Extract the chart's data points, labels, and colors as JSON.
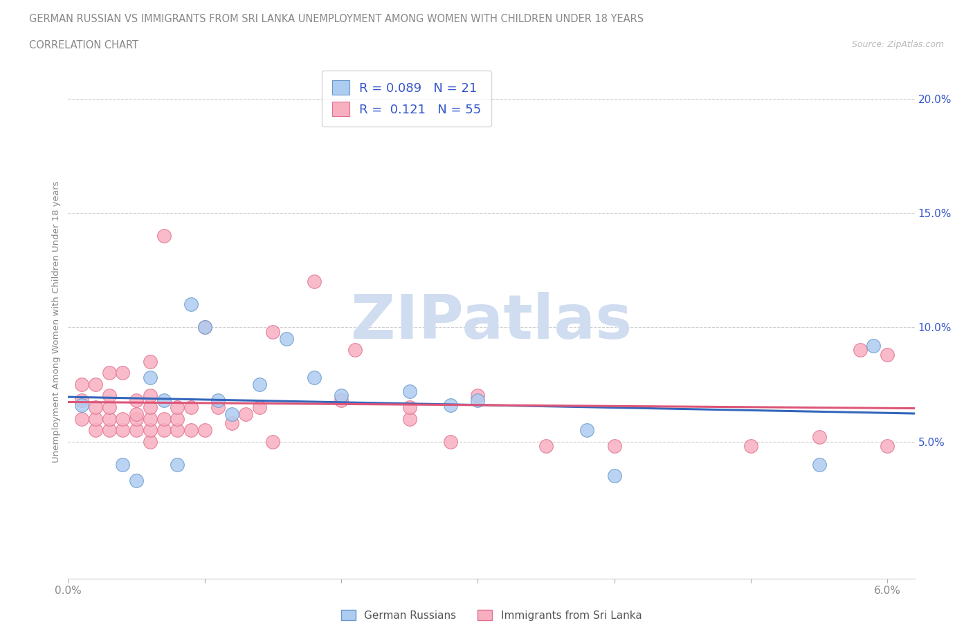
{
  "title": "GERMAN RUSSIAN VS IMMIGRANTS FROM SRI LANKA UNEMPLOYMENT AMONG WOMEN WITH CHILDREN UNDER 18 YEARS",
  "subtitle": "CORRELATION CHART",
  "source": "Source: ZipAtlas.com",
  "ylabel": "Unemployment Among Women with Children Under 18 years",
  "xlim": [
    0.0,
    0.062
  ],
  "ylim": [
    -0.01,
    0.215
  ],
  "xticks": [
    0.0,
    0.01,
    0.02,
    0.03,
    0.04,
    0.05,
    0.06
  ],
  "xticklabels_ends": [
    "0.0%",
    "6.0%"
  ],
  "yticks": [
    0.05,
    0.1,
    0.15,
    0.2
  ],
  "yticklabels": [
    "5.0%",
    "10.0%",
    "15.0%",
    "20.0%"
  ],
  "blue_fill_color": "#aeccf0",
  "pink_fill_color": "#f8b0c0",
  "blue_edge_color": "#6699cc",
  "pink_edge_color": "#e07090",
  "blue_line_color": "#3366bb",
  "pink_line_color": "#dd5577",
  "stat_text_color": "#3355cc",
  "title_color": "#888888",
  "ylabel_color": "#888888",
  "tick_color": "#3355cc",
  "watermark_text": "ZIPatlas",
  "watermark_color": "#d0ddf0",
  "R_blue": 0.089,
  "N_blue": 21,
  "R_pink": 0.121,
  "N_pink": 55,
  "legend_label_blue": "German Russians",
  "legend_label_pink": "Immigrants from Sri Lanka",
  "blue_scatter_x": [
    0.001,
    0.004,
    0.005,
    0.006,
    0.007,
    0.008,
    0.009,
    0.01,
    0.011,
    0.012,
    0.014,
    0.016,
    0.018,
    0.02,
    0.025,
    0.028,
    0.03,
    0.038,
    0.04,
    0.055,
    0.059
  ],
  "blue_scatter_y": [
    0.066,
    0.04,
    0.033,
    0.078,
    0.068,
    0.04,
    0.11,
    0.1,
    0.068,
    0.062,
    0.075,
    0.095,
    0.078,
    0.07,
    0.072,
    0.066,
    0.068,
    0.055,
    0.035,
    0.04,
    0.092
  ],
  "pink_scatter_x": [
    0.001,
    0.001,
    0.001,
    0.002,
    0.002,
    0.002,
    0.002,
    0.003,
    0.003,
    0.003,
    0.003,
    0.003,
    0.004,
    0.004,
    0.004,
    0.005,
    0.005,
    0.005,
    0.005,
    0.006,
    0.006,
    0.006,
    0.006,
    0.006,
    0.006,
    0.007,
    0.007,
    0.007,
    0.008,
    0.008,
    0.008,
    0.009,
    0.009,
    0.01,
    0.01,
    0.011,
    0.012,
    0.013,
    0.014,
    0.015,
    0.015,
    0.018,
    0.02,
    0.021,
    0.025,
    0.025,
    0.028,
    0.03,
    0.035,
    0.04,
    0.05,
    0.055,
    0.058,
    0.06,
    0.06
  ],
  "pink_scatter_y": [
    0.06,
    0.068,
    0.075,
    0.055,
    0.06,
    0.065,
    0.075,
    0.055,
    0.06,
    0.065,
    0.07,
    0.08,
    0.055,
    0.06,
    0.08,
    0.055,
    0.06,
    0.062,
    0.068,
    0.05,
    0.055,
    0.06,
    0.065,
    0.07,
    0.085,
    0.055,
    0.06,
    0.14,
    0.055,
    0.06,
    0.065,
    0.055,
    0.065,
    0.055,
    0.1,
    0.065,
    0.058,
    0.062,
    0.065,
    0.05,
    0.098,
    0.12,
    0.068,
    0.09,
    0.06,
    0.065,
    0.05,
    0.07,
    0.048,
    0.048,
    0.048,
    0.052,
    0.09,
    0.088,
    0.048
  ]
}
